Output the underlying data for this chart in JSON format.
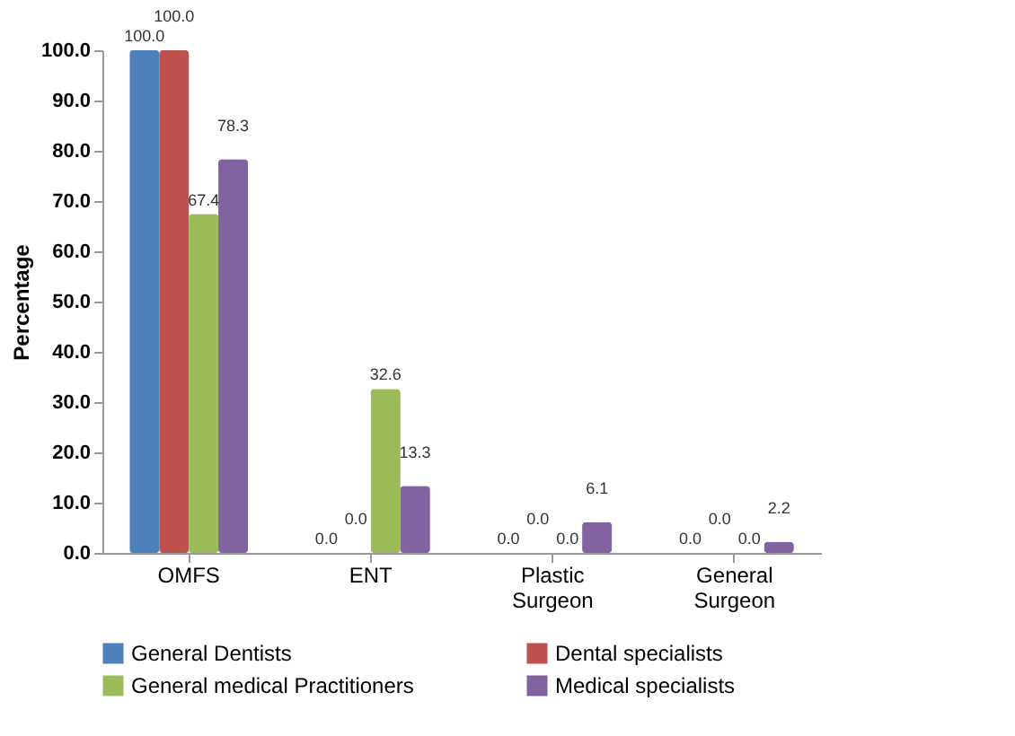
{
  "chart_data": {
    "type": "bar",
    "ylabel": "Percentage",
    "categories": [
      "OMFS",
      "ENT",
      "Plastic Surgeon",
      "General Surgeon"
    ],
    "series": [
      {
        "name": "General Dentists",
        "color": "#4f81bd",
        "values": [
          100.0,
          0.0,
          0.0,
          0.0
        ],
        "value_labels": [
          "100.0",
          "0.0",
          "0.0",
          "0.0"
        ]
      },
      {
        "name": "Dental specialists",
        "color": "#c0504d",
        "values": [
          100.0,
          0.0,
          0.0,
          0.0
        ],
        "value_labels": [
          "100.0",
          "0.0",
          "0.0",
          "0.0"
        ]
      },
      {
        "name": "General medical Practitioners",
        "color": "#9bbb59",
        "values": [
          67.4,
          32.6,
          0.0,
          0.0
        ],
        "value_labels": [
          "67.4",
          "32.6",
          "0.0",
          "0.0"
        ]
      },
      {
        "name": "Medical specialists",
        "color": "#8064a2",
        "values": [
          78.3,
          13.3,
          6.1,
          2.2
        ],
        "value_labels": [
          "78.3",
          "13.3",
          "6.1",
          "2.2"
        ]
      }
    ],
    "ylim": [
      0,
      100
    ],
    "yticks": [
      {
        "value": 0,
        "label": "0.0"
      },
      {
        "value": 10,
        "label": "10.0"
      },
      {
        "value": 20,
        "label": "20.0"
      },
      {
        "value": 30,
        "label": "30.0"
      },
      {
        "value": 40,
        "label": "40.0"
      },
      {
        "value": 50,
        "label": "50.0"
      },
      {
        "value": 60,
        "label": "60.0"
      },
      {
        "value": 70,
        "label": "70.0"
      },
      {
        "value": 80,
        "label": "80.0"
      },
      {
        "value": 90,
        "label": "90.0"
      },
      {
        "value": 100,
        "label": "100.0"
      }
    ],
    "grid": false,
    "legend": "bottom"
  }
}
